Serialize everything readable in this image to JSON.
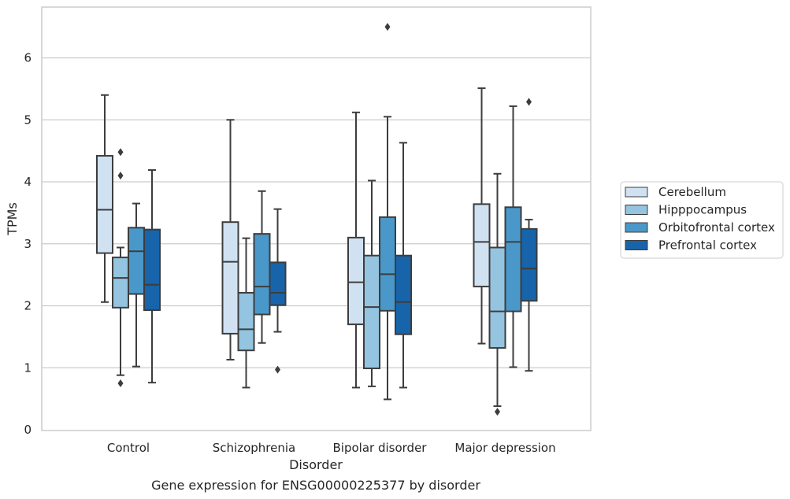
{
  "chart_data": {
    "type": "boxplot",
    "title": "",
    "caption": "Gene expression for ENSG00000225377 by disorder",
    "xlabel": "Disorder",
    "ylabel": "TPMs",
    "ylim": [
      0,
      6.8
    ],
    "yticks": [
      0,
      1,
      2,
      3,
      4,
      5,
      6
    ],
    "grid": true,
    "legend_position": "right",
    "categories": [
      "Control",
      "Schizophrenia",
      "Bipolar disorder",
      "Major depression"
    ],
    "series": [
      {
        "name": "Cerebellum",
        "color": "#d0e1f2",
        "boxes": [
          {
            "whisker_low": 2.06,
            "q1": 2.85,
            "median": 3.55,
            "q3": 4.42,
            "whisker_high": 5.4,
            "outliers": []
          },
          {
            "whisker_low": 1.13,
            "q1": 1.55,
            "median": 2.71,
            "q3": 3.35,
            "whisker_high": 5.0,
            "outliers": []
          },
          {
            "whisker_low": 0.68,
            "q1": 1.7,
            "median": 2.38,
            "q3": 3.1,
            "whisker_high": 5.12,
            "outliers": []
          },
          {
            "whisker_low": 1.39,
            "q1": 2.31,
            "median": 3.03,
            "q3": 3.64,
            "whisker_high": 5.51,
            "outliers": []
          }
        ]
      },
      {
        "name": "Hipppocampus",
        "color": "#94c4df",
        "boxes": [
          {
            "whisker_low": 0.88,
            "q1": 1.97,
            "median": 2.45,
            "q3": 2.78,
            "whisker_high": 2.94,
            "outliers": [
              0.75,
              4.1,
              4.48
            ]
          },
          {
            "whisker_low": 0.68,
            "q1": 1.28,
            "median": 1.62,
            "q3": 2.21,
            "whisker_high": 3.09,
            "outliers": []
          },
          {
            "whisker_low": 0.7,
            "q1": 0.99,
            "median": 1.98,
            "q3": 2.81,
            "whisker_high": 4.02,
            "outliers": []
          },
          {
            "whisker_low": 0.38,
            "q1": 1.32,
            "median": 1.91,
            "q3": 2.94,
            "whisker_high": 4.13,
            "outliers": [
              0.29
            ]
          }
        ]
      },
      {
        "name": "Orbitofrontal cortex",
        "color": "#4a98c9",
        "boxes": [
          {
            "whisker_low": 1.02,
            "q1": 2.19,
            "median": 2.88,
            "q3": 3.26,
            "whisker_high": 3.65,
            "outliers": []
          },
          {
            "whisker_low": 1.4,
            "q1": 1.86,
            "median": 2.31,
            "q3": 3.16,
            "whisker_high": 3.85,
            "outliers": []
          },
          {
            "whisker_low": 0.49,
            "q1": 1.92,
            "median": 2.51,
            "q3": 3.43,
            "whisker_high": 5.05,
            "outliers": [
              6.5
            ]
          },
          {
            "whisker_low": 1.01,
            "q1": 1.91,
            "median": 3.03,
            "q3": 3.59,
            "whisker_high": 5.22,
            "outliers": []
          }
        ]
      },
      {
        "name": "Prefrontal cortex",
        "color": "#1764ab",
        "boxes": [
          {
            "whisker_low": 0.76,
            "q1": 1.93,
            "median": 2.34,
            "q3": 3.23,
            "whisker_high": 4.19,
            "outliers": []
          },
          {
            "whisker_low": 1.58,
            "q1": 2.01,
            "median": 2.21,
            "q3": 2.7,
            "whisker_high": 3.56,
            "outliers": [
              0.97
            ]
          },
          {
            "whisker_low": 0.68,
            "q1": 1.54,
            "median": 2.06,
            "q3": 2.81,
            "whisker_high": 4.63,
            "outliers": []
          },
          {
            "whisker_low": 0.95,
            "q1": 2.08,
            "median": 2.6,
            "q3": 3.24,
            "whisker_high": 3.39,
            "outliers": [
              5.29
            ]
          }
        ]
      }
    ]
  }
}
